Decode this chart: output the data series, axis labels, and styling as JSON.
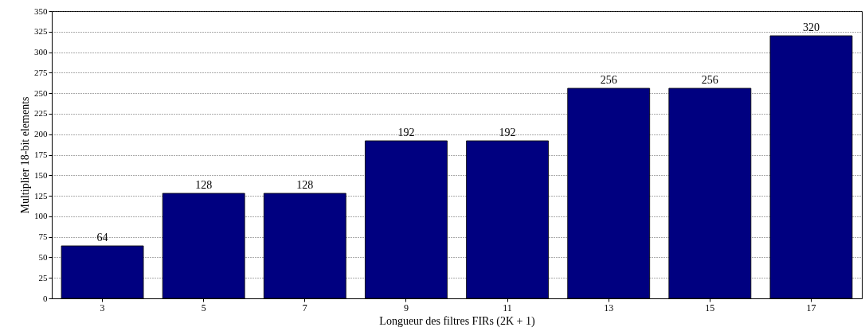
{
  "chart_data": {
    "type": "bar",
    "xlabel": "Longueur des filtres FIRs (2K + 1)",
    "ylabel": "Multiplier 18-bit elements",
    "categories": [
      "3",
      "5",
      "7",
      "9",
      "11",
      "13",
      "15",
      "17"
    ],
    "values": [
      64,
      128,
      128,
      192,
      192,
      256,
      256,
      320
    ],
    "color": "#000080",
    "ylim": [
      0,
      350
    ],
    "yticks": [
      0,
      25,
      50,
      75,
      100,
      125,
      150,
      175,
      200,
      225,
      250,
      275,
      300,
      325,
      350
    ],
    "grid": "y",
    "data_labels": true
  }
}
